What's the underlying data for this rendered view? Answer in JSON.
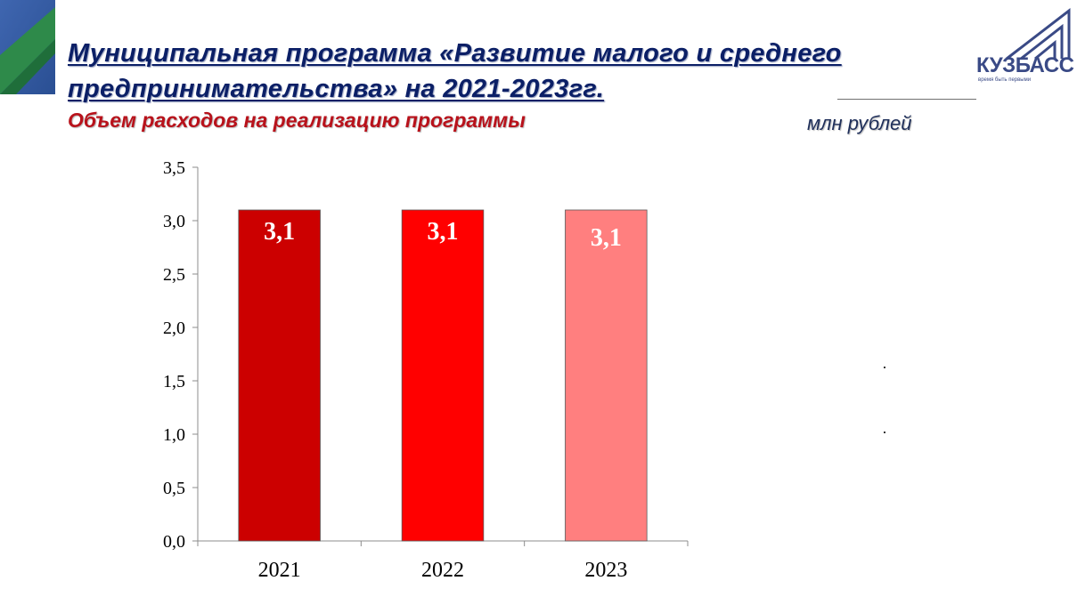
{
  "header": {
    "title": "Муниципальная программа «Развитие малого и среднего предпринимательства» на 2021-2023гг.",
    "subtitle": "Объем расходов на реализацию программы",
    "unit": "млн рублей"
  },
  "logo": {
    "name": "КУЗБАСС",
    "tagline": "время быть первыми",
    "color": "#3a4a86"
  },
  "chart_data": {
    "type": "bar",
    "categories": [
      "2021",
      "2022",
      "2023"
    ],
    "values": [
      3.1,
      3.1,
      3.1
    ],
    "data_labels": [
      "3,1",
      "3,1",
      "3,1"
    ],
    "colors": [
      "#cc0000",
      "#ff0000",
      "#ff7f7f"
    ],
    "ylim": [
      0,
      3.5
    ],
    "yticks": [
      "0,0",
      "0,5",
      "1,0",
      "1,5",
      "2,0",
      "2,5",
      "3,0",
      "3,5"
    ],
    "grid": false,
    "legend": "none"
  }
}
